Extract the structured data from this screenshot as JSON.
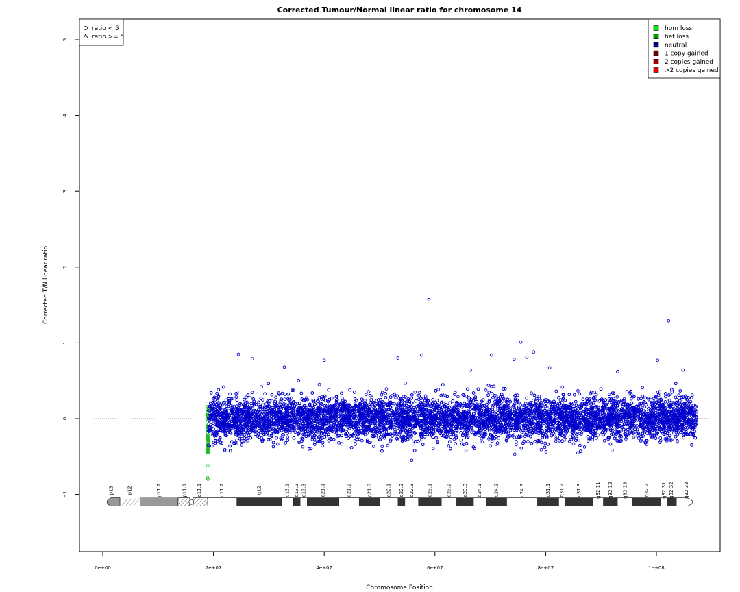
{
  "chart_data": {
    "type": "scatter",
    "title": "Corrected Tumour/Normal linear ratio for chromosome  14",
    "xlabel": "Chromosome Position",
    "ylabel": "Corrected T/N linear ratio",
    "xlim": [
      -4000000,
      112000000
    ],
    "ylim": [
      -1.75,
      5.3
    ],
    "x_ticks": [
      {
        "value": 0,
        "label": "0e+00"
      },
      {
        "value": 20000000,
        "label": "2e+07"
      },
      {
        "value": 40000000,
        "label": "4e+07"
      },
      {
        "value": 60000000,
        "label": "6e+07"
      },
      {
        "value": 80000000,
        "label": "8e+07"
      },
      {
        "value": 100000000,
        "label": "1e+08"
      }
    ],
    "y_ticks": [
      {
        "value": -1,
        "label": "−1"
      },
      {
        "value": 0,
        "label": "0"
      },
      {
        "value": 1,
        "label": "1"
      },
      {
        "value": 2,
        "label": "2"
      },
      {
        "value": 3,
        "label": "3"
      },
      {
        "value": 4,
        "label": "4"
      },
      {
        "value": 5,
        "label": "5"
      }
    ],
    "reference_line": {
      "y": 0,
      "style": "dotted",
      "color": "#777777"
    },
    "shape_legend": {
      "placement": "top-left",
      "entries": [
        {
          "symbol": "circle",
          "label": "ratio < 5"
        },
        {
          "symbol": "triangle",
          "label": "ratio >= 5"
        }
      ]
    },
    "color_legend": {
      "placement": "top-right",
      "entries": [
        {
          "label": "hom loss",
          "color": "#00ee00"
        },
        {
          "label": "het loss",
          "color": "#009900"
        },
        {
          "label": "neutral",
          "color": "#00008b"
        },
        {
          "label": "1 copy gained",
          "color": "#6b0000"
        },
        {
          "label": "2 copies gained",
          "color": "#aa0000"
        },
        {
          "label": ">2 copies gained",
          "color": "#ee0000"
        }
      ]
    },
    "series": [
      {
        "name": "het loss",
        "color": "#22bb22",
        "x_range": [
          18800000,
          19100000
        ],
        "y_center": -0.2,
        "y_spread": 0.22,
        "count": 70,
        "points": [
          {
            "x": 18950000,
            "y": -0.78
          },
          {
            "x": 19000000,
            "y": -0.8
          },
          {
            "x": 18980000,
            "y": -0.62
          }
        ]
      },
      {
        "name": "neutral",
        "color": "#0000cc",
        "x_range": [
          19100000,
          107300000
        ],
        "y_center": 0.0,
        "y_spread": 0.14,
        "count": 9000,
        "points": [
          {
            "x": 58900000,
            "y": 1.57
          },
          {
            "x": 102200000,
            "y": 1.29
          },
          {
            "x": 75500000,
            "y": 1.01
          },
          {
            "x": 77800000,
            "y": 0.88
          },
          {
            "x": 24500000,
            "y": 0.85
          },
          {
            "x": 57600000,
            "y": 0.84
          },
          {
            "x": 70200000,
            "y": 0.84
          },
          {
            "x": 27000000,
            "y": 0.79
          },
          {
            "x": 53300000,
            "y": 0.8
          },
          {
            "x": 40000000,
            "y": 0.77
          },
          {
            "x": 100200000,
            "y": 0.77
          },
          {
            "x": 76600000,
            "y": 0.81
          },
          {
            "x": 74300000,
            "y": 0.78
          },
          {
            "x": 80700000,
            "y": 0.67
          },
          {
            "x": 32800000,
            "y": 0.68
          },
          {
            "x": 104800000,
            "y": 0.64
          },
          {
            "x": 93000000,
            "y": 0.62
          },
          {
            "x": 66400000,
            "y": 0.64
          },
          {
            "x": 22000000,
            "y": -0.42
          },
          {
            "x": 55800000,
            "y": -0.55
          },
          {
            "x": 74400000,
            "y": -0.47
          },
          {
            "x": 85800000,
            "y": -0.45
          }
        ]
      }
    ],
    "ideogram": {
      "y": -1.1,
      "bands": [
        {
          "name": "p13",
          "start": 0,
          "end": 3100000,
          "stain": "gvar"
        },
        {
          "name": "p12",
          "start": 3100000,
          "end": 6700000,
          "stain": "stalk"
        },
        {
          "name": "p11.2",
          "start": 6700000,
          "end": 13600000,
          "stain": "gvar"
        },
        {
          "name": "p11.1",
          "start": 13600000,
          "end": 16000000,
          "stain": "acen"
        },
        {
          "name": "q11.1",
          "start": 16000000,
          "end": 18900000,
          "stain": "acen"
        },
        {
          "name": "q11.2",
          "start": 18900000,
          "end": 24200000,
          "stain": "gneg"
        },
        {
          "name": "q12",
          "start": 24200000,
          "end": 32300000,
          "stain": "gpos100"
        },
        {
          "name": "q13.1",
          "start": 32300000,
          "end": 34400000,
          "stain": "gneg"
        },
        {
          "name": "q13.2",
          "start": 34400000,
          "end": 35700000,
          "stain": "gpos100"
        },
        {
          "name": "q13.3",
          "start": 35700000,
          "end": 36900000,
          "stain": "gneg"
        },
        {
          "name": "q21.1",
          "start": 36900000,
          "end": 42700000,
          "stain": "gpos100"
        },
        {
          "name": "q21.2",
          "start": 42700000,
          "end": 46300000,
          "stain": "gneg"
        },
        {
          "name": "q21.3",
          "start": 46300000,
          "end": 50100000,
          "stain": "gpos100"
        },
        {
          "name": "q22.1",
          "start": 50100000,
          "end": 53300000,
          "stain": "gneg"
        },
        {
          "name": "q22.2",
          "start": 53300000,
          "end": 54600000,
          "stain": "gpos100"
        },
        {
          "name": "q22.3",
          "start": 54600000,
          "end": 57000000,
          "stain": "gneg"
        },
        {
          "name": "q23.1",
          "start": 57000000,
          "end": 61200000,
          "stain": "gpos100"
        },
        {
          "name": "q23.2",
          "start": 61200000,
          "end": 63900000,
          "stain": "gneg"
        },
        {
          "name": "q23.3",
          "start": 63900000,
          "end": 67000000,
          "stain": "gpos100"
        },
        {
          "name": "q24.1",
          "start": 67000000,
          "end": 69200000,
          "stain": "gneg"
        },
        {
          "name": "q24.2",
          "start": 69200000,
          "end": 73000000,
          "stain": "gpos100"
        },
        {
          "name": "q24.3",
          "start": 73000000,
          "end": 78500000,
          "stain": "gneg"
        },
        {
          "name": "q31.1",
          "start": 78500000,
          "end": 82400000,
          "stain": "gpos100"
        },
        {
          "name": "q31.2",
          "start": 82400000,
          "end": 83500000,
          "stain": "gneg"
        },
        {
          "name": "q31.3",
          "start": 83500000,
          "end": 88500000,
          "stain": "gpos100"
        },
        {
          "name": "q32.11",
          "start": 88500000,
          "end": 90400000,
          "stain": "gneg"
        },
        {
          "name": "q32.12",
          "start": 90400000,
          "end": 93000000,
          "stain": "gpos100"
        },
        {
          "name": "q32.13",
          "start": 93000000,
          "end": 95700000,
          "stain": "gneg"
        },
        {
          "name": "q32.2",
          "start": 95700000,
          "end": 100800000,
          "stain": "gpos100"
        },
        {
          "name": "q32.31",
          "start": 100800000,
          "end": 101900000,
          "stain": "gneg"
        },
        {
          "name": "q32.32",
          "start": 101900000,
          "end": 103600000,
          "stain": "gpos100"
        },
        {
          "name": "q32.33",
          "start": 103600000,
          "end": 107300000,
          "stain": "gneg"
        }
      ]
    }
  }
}
